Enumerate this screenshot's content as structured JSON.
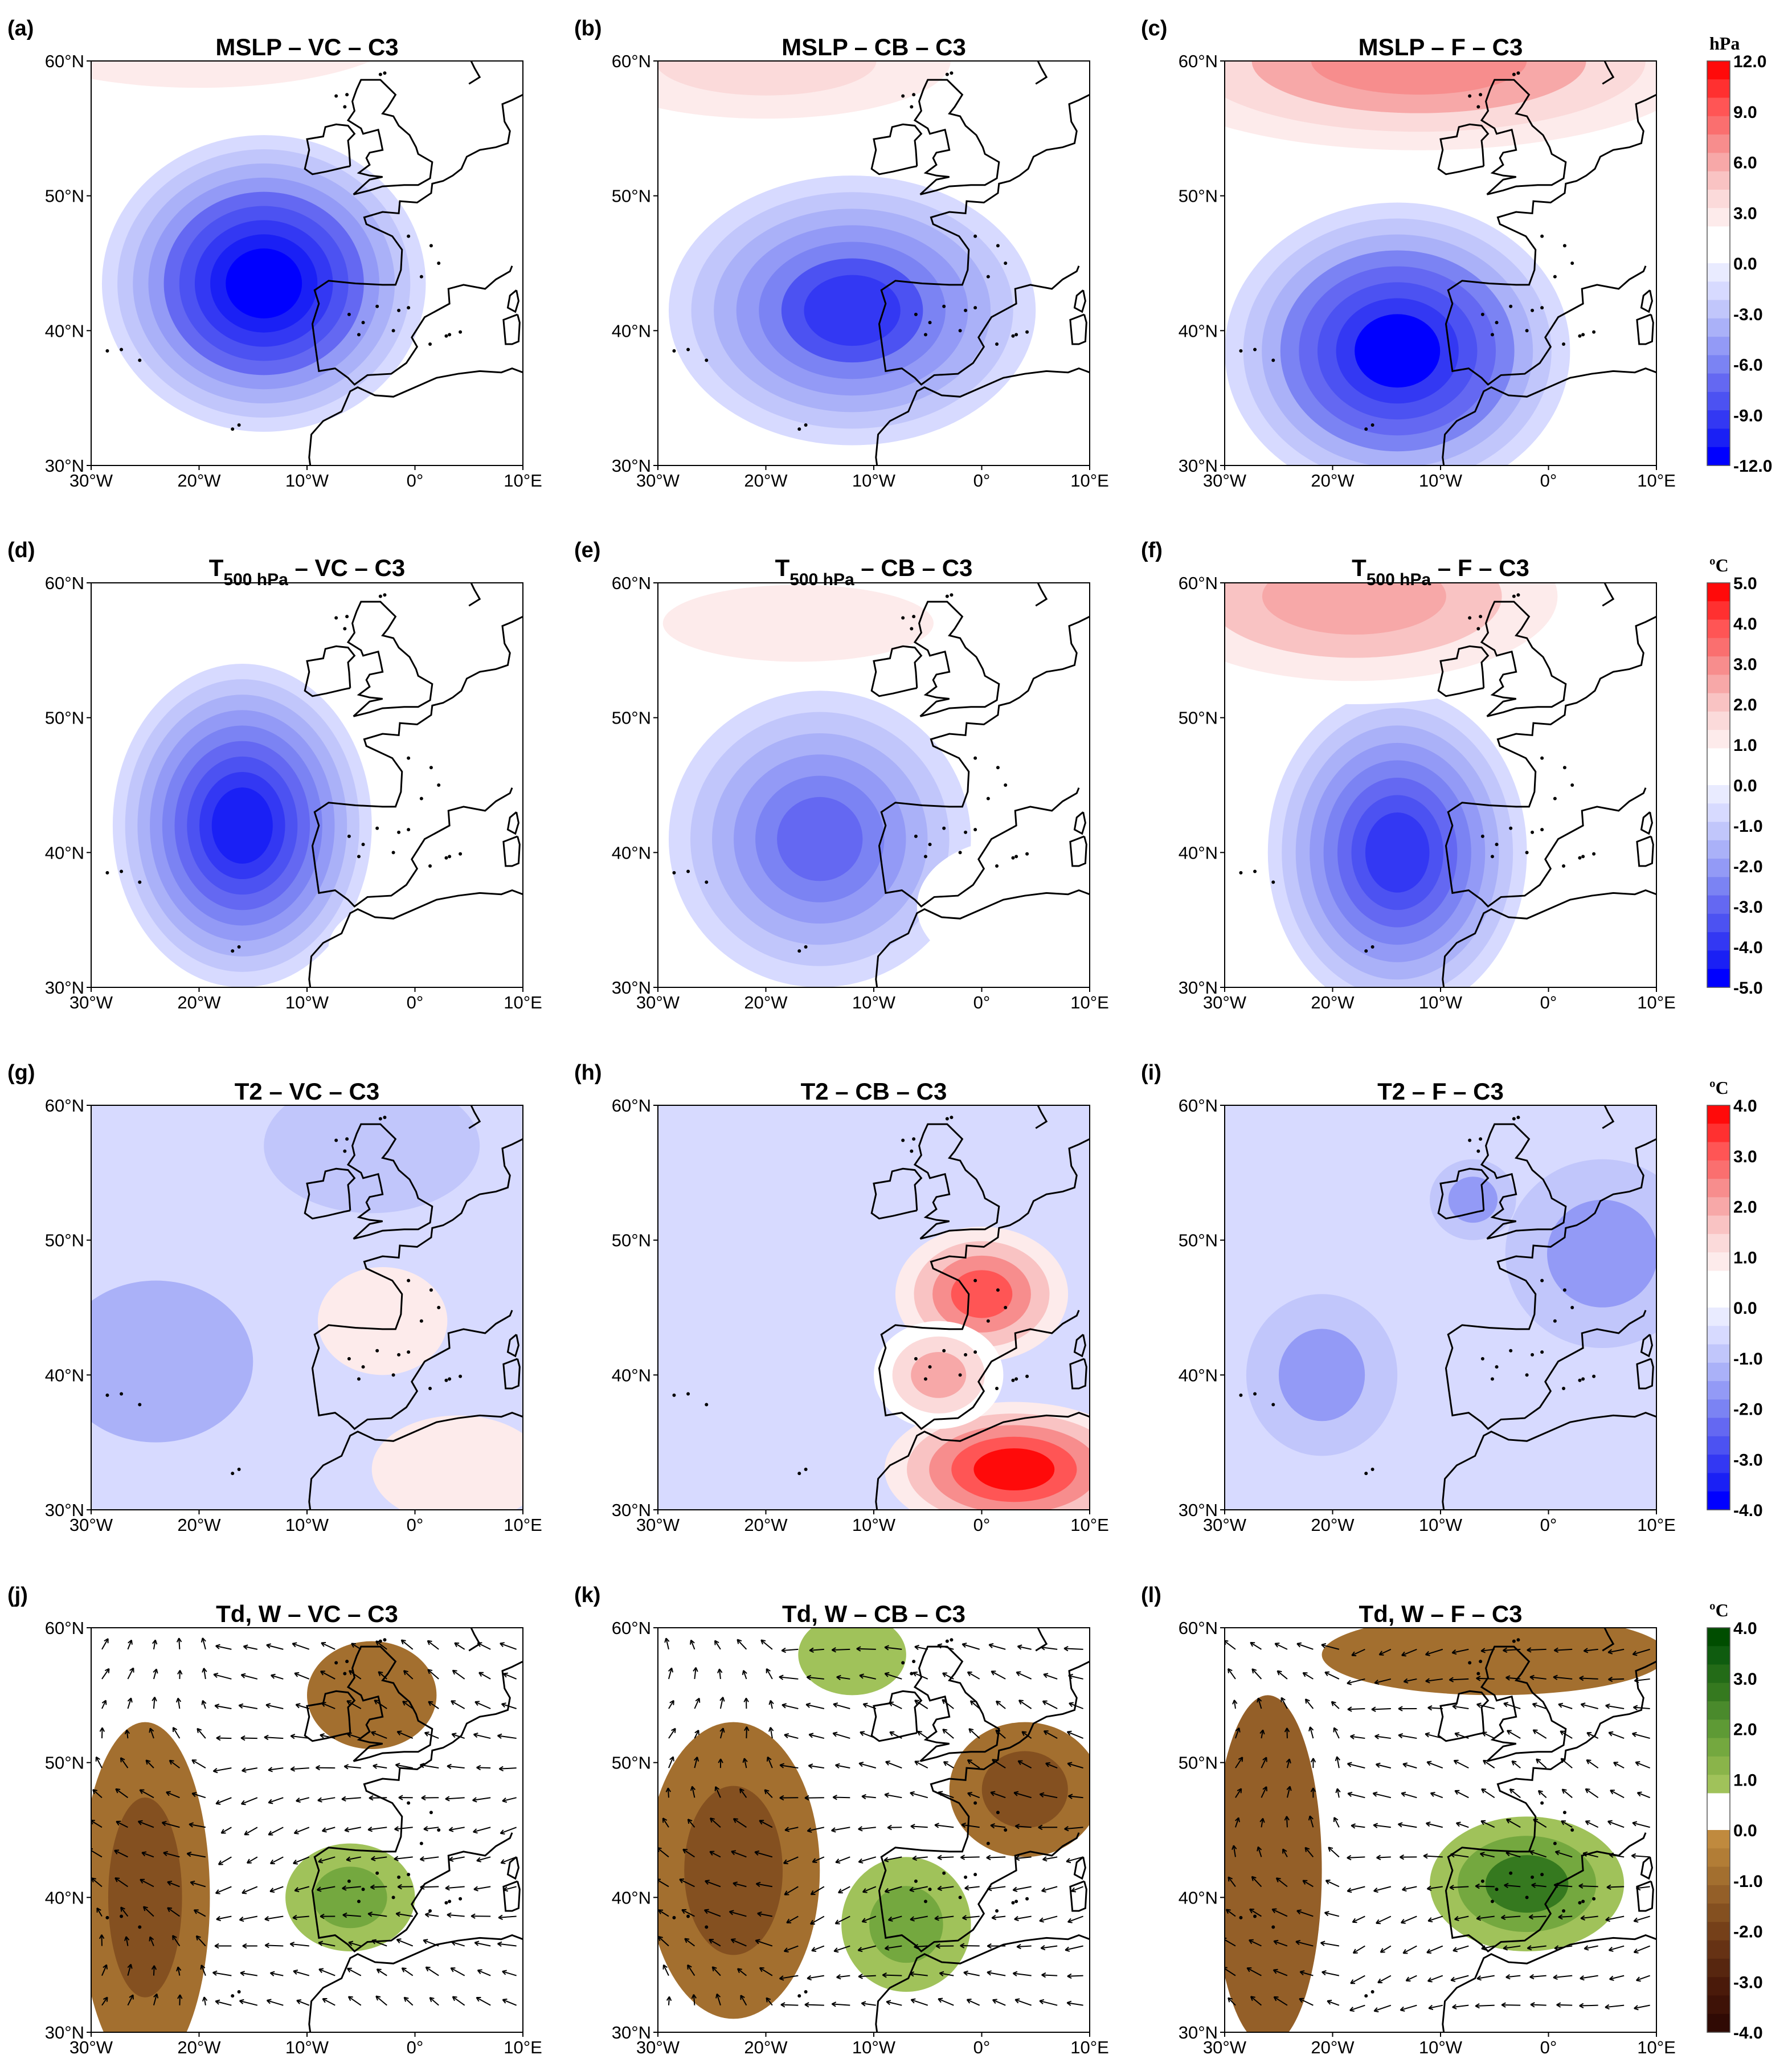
{
  "figure": {
    "rows": [
      {
        "variable": "MSLP",
        "colorbar": {
          "unit": "hPa",
          "labels": [
            "12.0",
            "9.0",
            "6.0",
            "3.0",
            "0.0",
            "-3.0",
            "-6.0",
            "-9.0",
            "-12.0"
          ],
          "palette": "red-blue",
          "colors": [
            "#ff0a0a",
            "#ff3030",
            "#ff5555",
            "#fa6f6f",
            "#f78d8d",
            "#f7a8a8",
            "#f9c3c3",
            "#fbdada",
            "#fdebeb",
            "#ffffff",
            "#ffffff",
            "#e9ebff",
            "#d7daff",
            "#c1c6fb",
            "#aab1f8",
            "#939af6",
            "#7b83f3",
            "#6468f2",
            "#4c52f2",
            "#3338f3",
            "#1a20f5",
            "#0000ff"
          ]
        },
        "panels": [
          {
            "label": "(a)",
            "title": "MSLP – VC – C3",
            "blobs": [
              {
                "lon": -14,
                "lat": 43.5,
                "rx": 15,
                "ry": 11,
                "value": -12,
                "levels": 9
              },
              {
                "lon": -20,
                "lat": 63,
                "rx": 28,
                "ry": 7,
                "value": 4,
                "levels": 3
              }
            ]
          },
          {
            "label": "(b)",
            "title": "MSLP – CB – C3",
            "blobs": [
              {
                "lon": -12,
                "lat": 41.5,
                "rx": 17,
                "ry": 10,
                "value": -9,
                "levels": 7
              },
              {
                "lon": -20,
                "lat": 60,
                "rx": 24,
                "ry": 6,
                "value": 4,
                "levels": 3
              }
            ]
          },
          {
            "label": "(c)",
            "title": "MSLP – F – C3",
            "blobs": [
              {
                "lon": -14,
                "lat": 38.5,
                "rx": 16,
                "ry": 11,
                "value": -11,
                "levels": 8
              },
              {
                "lon": -12,
                "lat": 60,
                "rx": 32,
                "ry": 8,
                "value": 7,
                "levels": 5
              }
            ]
          }
        ]
      },
      {
        "variable": "T500",
        "colorbar": {
          "unit": "ºC",
          "labels": [
            "5.0",
            "4.0",
            "3.0",
            "2.0",
            "1.0",
            "0.0",
            "-1.0",
            "-2.0",
            "-3.0",
            "-4.0",
            "-5.0"
          ],
          "palette": "red-blue",
          "colors": [
            "#ff0a0a",
            "#ff3030",
            "#ff5555",
            "#fa6f6f",
            "#f78d8d",
            "#f7a8a8",
            "#f9c3c3",
            "#fbdada",
            "#fdebeb",
            "#ffffff",
            "#ffffff",
            "#e9ebff",
            "#d7daff",
            "#c1c6fb",
            "#aab1f8",
            "#939af6",
            "#7b83f3",
            "#6468f2",
            "#4c52f2",
            "#3338f3",
            "#1a20f5",
            "#0000ff"
          ]
        },
        "panels": [
          {
            "label": "(d)",
            "title_main": "T",
            "title_sub": "500 hPa",
            "title_rest": " – VC – C3",
            "blobs": [
              {
                "lon": -16,
                "lat": 42,
                "rx": 12,
                "ry": 12,
                "value": -4.4,
                "levels": 9
              },
              {
                "lon": 6,
                "lat": 46,
                "rx": 6,
                "ry": 9,
                "value": 0.6,
                "levels": 1
              },
              {
                "lon": 2,
                "lat": 33,
                "rx": 10,
                "ry": 4,
                "value": 0.6,
                "levels": 1
              }
            ]
          },
          {
            "label": "(e)",
            "title_main": "T",
            "title_sub": "500 hPa",
            "title_rest": " – CB – C3",
            "blobs": [
              {
                "lon": -15,
                "lat": 41,
                "rx": 14,
                "ry": 11,
                "value": -2.8,
                "levels": 6
              },
              {
                "lon": -17,
                "lat": 57,
                "rx": 22,
                "ry": 5,
                "value": 1.2,
                "levels": 2
              },
              {
                "lon": 3,
                "lat": 36,
                "rx": 9,
                "ry": 5,
                "value": 0.6,
                "levels": 1
              }
            ]
          },
          {
            "label": "(f)",
            "title_main": "T",
            "title_sub": "500 hPa",
            "title_rest": " – F – C3",
            "blobs": [
              {
                "lon": -14,
                "lat": 40,
                "rx": 12,
                "ry": 12,
                "value": -4,
                "levels": 8
              },
              {
                "lon": -18,
                "lat": 59,
                "rx": 24,
                "ry": 8,
                "value": 2.6,
                "levels": 4
              }
            ]
          }
        ]
      },
      {
        "variable": "T2",
        "colorbar": {
          "unit": "ºC",
          "labels": [
            "4.0",
            "3.0",
            "2.0",
            "1.0",
            "0.0",
            "-1.0",
            "-2.0",
            "-3.0",
            "-4.0"
          ],
          "palette": "red-blue",
          "colors": [
            "#ff0a0a",
            "#ff3030",
            "#ff5555",
            "#fa6f6f",
            "#f78d8d",
            "#f7a8a8",
            "#f9c3c3",
            "#fbdada",
            "#fdebeb",
            "#ffffff",
            "#ffffff",
            "#e9ebff",
            "#d7daff",
            "#c1c6fb",
            "#aab1f8",
            "#939af6",
            "#7b83f3",
            "#6468f2",
            "#4c52f2",
            "#3338f3",
            "#1a20f5",
            "#0000ff"
          ]
        },
        "panels": [
          {
            "label": "(g)",
            "title": "T2 – VC – C3",
            "background": -0.5,
            "blobs": [
              {
                "lon": -24,
                "lat": 41,
                "rx": 9,
                "ry": 6,
                "value": -1.2,
                "levels": 1
              },
              {
                "lon": -3,
                "lat": 44,
                "rx": 6,
                "ry": 4,
                "value": 1,
                "levels": 1
              },
              {
                "lon": 4,
                "lat": 33,
                "rx": 8,
                "ry": 4,
                "value": 1,
                "levels": 1
              },
              {
                "lon": -4,
                "lat": 57,
                "rx": 10,
                "ry": 5,
                "value": -1,
                "levels": 1
              }
            ]
          },
          {
            "label": "(h)",
            "title": "T2 – CB – C3",
            "background": -0.5,
            "blobs": [
              {
                "lon": 3,
                "lat": 33,
                "rx": 12,
                "ry": 5,
                "value": 4,
                "levels": 5
              },
              {
                "lon": 0,
                "lat": 46,
                "rx": 8,
                "ry": 5,
                "value": 3,
                "levels": 4
              },
              {
                "lon": -4,
                "lat": 40,
                "rx": 6,
                "ry": 4,
                "value": 2,
                "levels": 3
              }
            ]
          },
          {
            "label": "(i)",
            "title": "T2 – F – C3",
            "background": -0.5,
            "blobs": [
              {
                "lon": -21,
                "lat": 40,
                "rx": 7,
                "ry": 6,
                "value": -1.8,
                "levels": 2
              },
              {
                "lon": 5,
                "lat": 49,
                "rx": 9,
                "ry": 7,
                "value": -1.8,
                "levels": 2
              },
              {
                "lon": -7,
                "lat": 53,
                "rx": 4,
                "ry": 3,
                "value": -1.8,
                "levels": 2
              }
            ]
          }
        ]
      },
      {
        "variable": "Td, W",
        "colorbar": {
          "unit": "ºC",
          "labels": [
            "4.0",
            "3.0",
            "2.0",
            "1.0",
            "0.0",
            "-1.0",
            "-2.0",
            "-3.0",
            "-4.0"
          ],
          "palette": "green-brown",
          "colors": [
            "#004d00",
            "#0f5c0f",
            "#236b17",
            "#35791f",
            "#4a8a2c",
            "#5e9a35",
            "#74a83f",
            "#8ab44a",
            "#a0c25a",
            "#ffffff",
            "#ffffff",
            "#c08a3e",
            "#b27d36",
            "#a36f2f",
            "#945f28",
            "#845020",
            "#754019",
            "#663214",
            "#57260f",
            "#4a1a0a",
            "#3e1207",
            "#300a04"
          ]
        },
        "panels": [
          {
            "label": "(j)",
            "title": "Td, W – VC – C3",
            "blobs": [
              {
                "lon": -25,
                "lat": 40,
                "rx": 6,
                "ry": 13,
                "value": -1.5,
                "levels": 2
              },
              {
                "lon": -6,
                "lat": 40,
                "rx": 6,
                "ry": 4,
                "value": 1.5,
                "levels": 2
              },
              {
                "lon": -4,
                "lat": 55,
                "rx": 6,
                "ry": 4,
                "value": -1,
                "levels": 1
              }
            ]
          },
          {
            "label": "(k)",
            "title": "Td, W – CB – C3",
            "blobs": [
              {
                "lon": -23,
                "lat": 42,
                "rx": 8,
                "ry": 11,
                "value": -1.5,
                "levels": 2
              },
              {
                "lon": -7,
                "lat": 38,
                "rx": 6,
                "ry": 5,
                "value": 1.8,
                "levels": 2
              },
              {
                "lon": 4,
                "lat": 48,
                "rx": 7,
                "ry": 5,
                "value": -1.6,
                "levels": 2
              },
              {
                "lon": -12,
                "lat": 58,
                "rx": 5,
                "ry": 3,
                "value": 1,
                "levels": 1
              }
            ]
          },
          {
            "label": "(l)",
            "title": "Td, W – F – C3",
            "blobs": [
              {
                "lon": -26,
                "lat": 42,
                "rx": 5,
                "ry": 13,
                "value": -1.2,
                "levels": 1
              },
              {
                "lon": -2,
                "lat": 41,
                "rx": 9,
                "ry": 5,
                "value": 2.6,
                "levels": 3
              },
              {
                "lon": -5,
                "lat": 58,
                "rx": 16,
                "ry": 3,
                "value": -1,
                "levels": 1
              }
            ]
          }
        ]
      }
    ],
    "axes": {
      "lon_labels": [
        "30°W",
        "20°W",
        "10°W",
        "0°",
        "10°E"
      ],
      "lat_labels": [
        "60°N",
        "50°N",
        "40°N",
        "30°N"
      ],
      "lon_range": [
        -30,
        10
      ],
      "lat_range": [
        30,
        60
      ]
    }
  }
}
